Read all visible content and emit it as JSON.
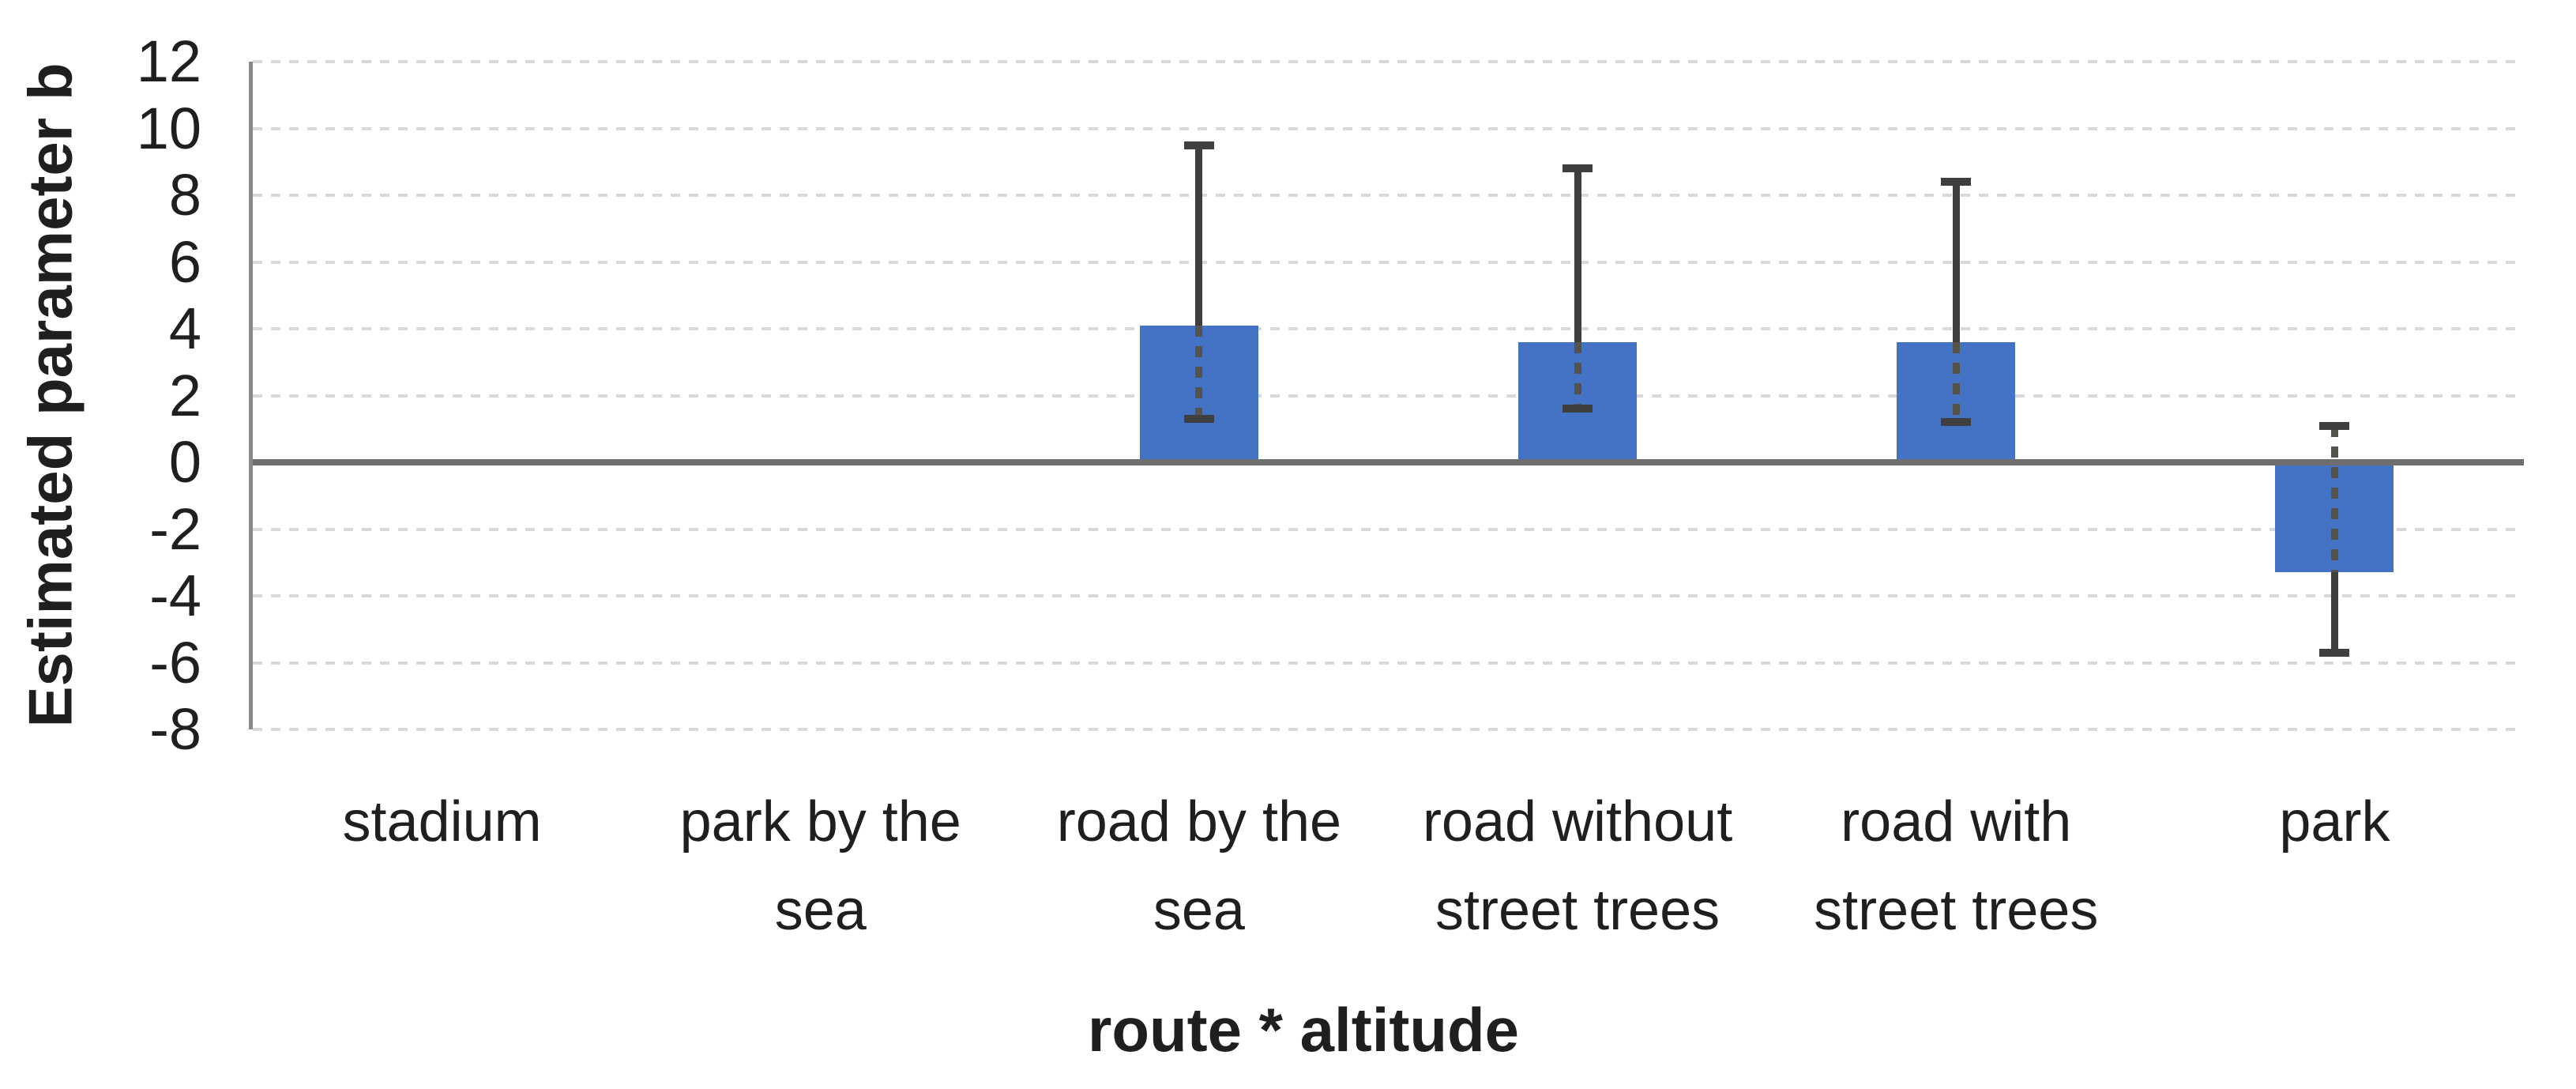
{
  "chart_data": {
    "type": "bar",
    "title": "",
    "xlabel": "route * altitude",
    "ylabel": "Estimated parameter b",
    "categories": [
      "stadium",
      "park by the sea",
      "road by the sea",
      "road without street trees",
      "road with street trees",
      "park"
    ],
    "values": [
      0,
      0,
      4.1,
      3.6,
      3.6,
      -3.3
    ],
    "error_bars": {
      "low": [
        null,
        null,
        1.3,
        1.6,
        1.2,
        -5.7
      ],
      "high": [
        null,
        null,
        9.5,
        8.8,
        8.4,
        1.1
      ]
    },
    "ylim": [
      -8,
      12
    ],
    "ytick_step": 2,
    "yticks": [
      12,
      10,
      8,
      6,
      4,
      2,
      0,
      -2,
      -4,
      -6,
      -8
    ],
    "grid": "horizontal-dashed",
    "legend": "none",
    "colors": {
      "bar": "#4472C4",
      "error_bar": "#3f3f3f",
      "error_bar_dash": "#55524a",
      "zero_line": "#6e6e6e",
      "axis_line": "#8a8a8a",
      "gridline": "#d9d9d9",
      "text": "#1f1f1f"
    }
  }
}
